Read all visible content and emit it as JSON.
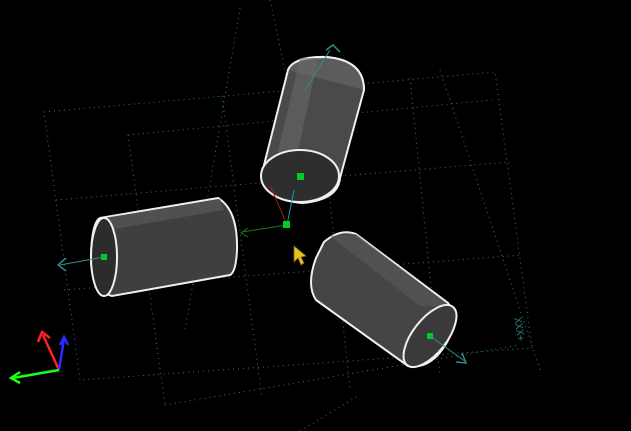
{
  "viewport": {
    "background_color": "#000000",
    "grid_color": "#2f7a78",
    "axis_label": "XXX+"
  },
  "cylinders": [
    {
      "name": "cylinder-top",
      "body_color": "#4a4a4a",
      "outline_color": "#f0f0f0",
      "selected": true
    },
    {
      "name": "cylinder-left",
      "body_color": "#3f3f3f",
      "outline_color": "#f0f0f0",
      "selected": false
    },
    {
      "name": "cylinder-right",
      "body_color": "#454545",
      "outline_color": "#f0f0f0",
      "selected": false
    }
  ],
  "colors": {
    "pivot_handle": "#00cc22",
    "cursor": "#e6c21a",
    "axis_x": "#ff2020",
    "axis_y": "#1bff1b",
    "axis_z": "#2a2aff",
    "direction_arrow": "#2e8c8c"
  },
  "icons": {
    "cursor": "arrow-cursor-icon",
    "orientation_gizmo": "xyz-axes-icon"
  }
}
